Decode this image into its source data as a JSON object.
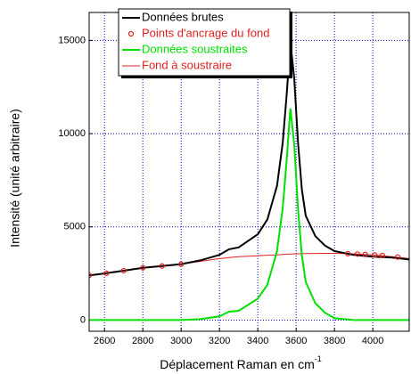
{
  "chart_data": {
    "type": "line",
    "ylabel": "Intensité (unité arbitraire)",
    "xlabel": "Déplacement Raman en cm",
    "xlabel_superscript": "-1",
    "x": [
      2520,
      2600,
      2700,
      2800,
      2900,
      3000,
      3100,
      3200,
      3250,
      3300,
      3400,
      3450,
      3500,
      3530,
      3550,
      3570,
      3590,
      3610,
      3630,
      3650,
      3700,
      3750,
      3800,
      3900,
      4000,
      4100,
      4190
    ],
    "series": [
      {
        "name": "Données brutes",
        "color": "#000000",
        "kind": "line",
        "values": [
          2400,
          2500,
          2650,
          2800,
          2900,
          3000,
          3200,
          3500,
          3800,
          3900,
          4600,
          5400,
          7200,
          9500,
          12000,
          14900,
          13000,
          9500,
          7000,
          5600,
          4500,
          4000,
          3700,
          3500,
          3400,
          3350,
          3250
        ]
      },
      {
        "name": "Points d'ancrage du fond",
        "color": "#e02020",
        "kind": "scatter",
        "x": [
          2520,
          2610,
          2700,
          2800,
          2900,
          3000,
          3870,
          3920,
          3960,
          4010,
          4050,
          4130
        ],
        "values": [
          2400,
          2510,
          2650,
          2800,
          2900,
          3000,
          3560,
          3540,
          3520,
          3490,
          3460,
          3380
        ]
      },
      {
        "name": "Données soustraites",
        "color": "#00e000",
        "kind": "line",
        "values": [
          0,
          0,
          0,
          0,
          0,
          0,
          50,
          200,
          450,
          500,
          1150,
          1900,
          3700,
          6000,
          8500,
          11350,
          9450,
          5950,
          3450,
          2050,
          900,
          400,
          100,
          0,
          0,
          0,
          0
        ]
      },
      {
        "name": "Fond à soustraire",
        "color": "#e02020",
        "kind": "line",
        "values": [
          2400,
          2500,
          2650,
          2800,
          2900,
          3000,
          3150,
          3300,
          3350,
          3400,
          3450,
          3480,
          3500,
          3520,
          3530,
          3540,
          3550,
          3555,
          3560,
          3565,
          3575,
          3580,
          3580,
          3550,
          3500,
          3400,
          3300
        ]
      }
    ],
    "xlim": [
      2520,
      4190
    ],
    "ylim": [
      -600,
      16500
    ],
    "xticks": [
      2600,
      2800,
      3000,
      3200,
      3400,
      3600,
      3800,
      4000
    ],
    "yticks": [
      0,
      5000,
      10000,
      15000
    ],
    "grid": true,
    "grid_color": "#0000cc",
    "legend": "upper left"
  }
}
